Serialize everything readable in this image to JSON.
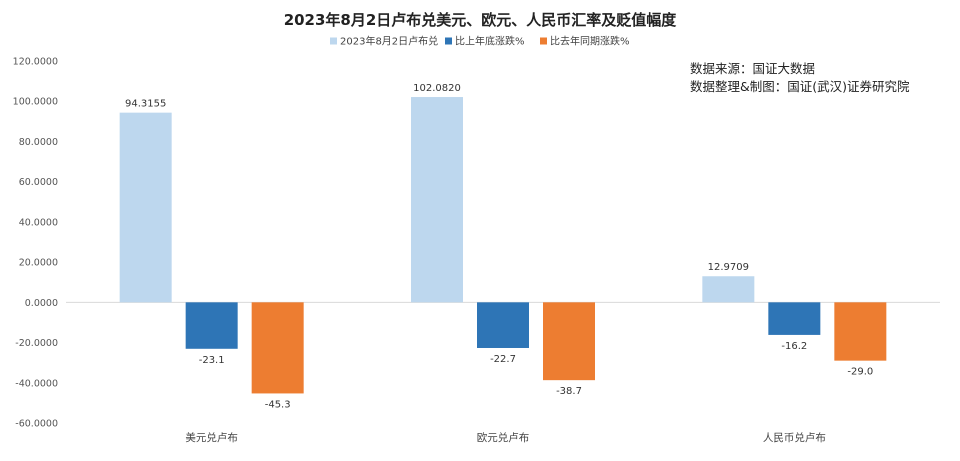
{
  "chart_data": {
    "type": "bar",
    "title": "2023年8月2日卢布兑美元、欧元、人民币汇率及贬值幅度",
    "categories": [
      "美元兑卢布",
      "欧元兑卢布",
      "人民币兑卢布"
    ],
    "series": [
      {
        "name": "2023年8月2日卢布兑",
        "color": "#bdd7ee",
        "values": [
          94.3155,
          102.082,
          12.9709
        ],
        "labels": [
          "94.3155",
          "102.0820",
          "12.9709"
        ]
      },
      {
        "name": "比上年底涨跌%",
        "color": "#2e75b6",
        "values": [
          -23.1,
          -22.7,
          -16.2
        ],
        "labels": [
          "-23.1",
          "-22.7",
          "-16.2"
        ]
      },
      {
        "name": "比去年同期涨跌%",
        "color": "#ed7d31",
        "values": [
          -45.3,
          -38.7,
          -29.0
        ],
        "labels": [
          "-45.3",
          "-38.7",
          "-29.0"
        ]
      }
    ],
    "ylim": [
      -60,
      120
    ],
    "yticks": [
      120,
      100,
      80,
      60,
      40,
      20,
      0,
      -20,
      -40,
      -60
    ],
    "ytick_labels": [
      "120.0000",
      "100.0000",
      "80.0000",
      "60.0000",
      "40.0000",
      "20.0000",
      "0.0000",
      "-20.0000",
      "-40.0000",
      "-60.0000"
    ],
    "legend_position": "top",
    "grid": false,
    "annotations": [
      "数据来源：国证大数据",
      "数据整理&制图：国证(武汉)证券研究院"
    ]
  }
}
